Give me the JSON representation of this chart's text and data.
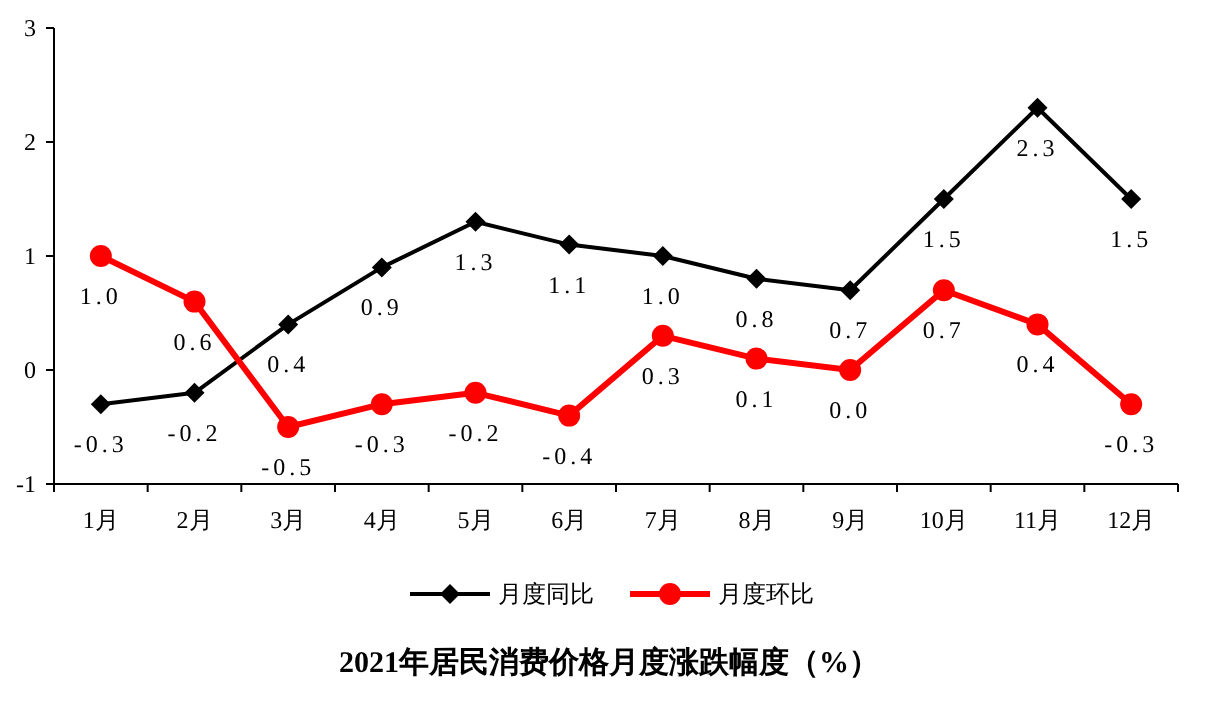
{
  "chart_data": {
    "type": "line",
    "title": "2021年居民消费价格月度涨跌幅度（%）",
    "categories": [
      "1月",
      "2月",
      "3月",
      "4月",
      "5月",
      "6月",
      "7月",
      "8月",
      "9月",
      "10月",
      "11月",
      "12月"
    ],
    "series": [
      {
        "name": "月度同比",
        "color": "#000000",
        "marker": "diamond",
        "values": [
          -0.3,
          -0.2,
          0.4,
          0.9,
          1.3,
          1.1,
          1.0,
          0.8,
          0.7,
          1.5,
          2.3,
          1.5
        ],
        "value_labels": [
          "-0.3",
          "-0.2",
          "0.4",
          "0.9",
          "1.3",
          "1.1",
          "1.0",
          "0.8",
          "0.7",
          "1.5",
          "2.3",
          "1.5"
        ]
      },
      {
        "name": "月度环比",
        "color": "#ff0000",
        "marker": "circle",
        "values": [
          1.0,
          0.6,
          -0.5,
          -0.3,
          -0.2,
          -0.4,
          0.3,
          0.1,
          0.0,
          0.7,
          0.4,
          -0.3
        ],
        "value_labels": [
          "1.0",
          "0.6",
          "-0.5",
          "-0.3",
          "-0.2",
          "-0.4",
          "0.3",
          "0.1",
          "0.0",
          "0.7",
          "0.4",
          "-0.3"
        ]
      }
    ],
    "ylim": [
      -1,
      3
    ],
    "yticks": [
      -1,
      0,
      1,
      2,
      3
    ],
    "grid": false,
    "legend": "bottom",
    "line_style": "solid"
  }
}
